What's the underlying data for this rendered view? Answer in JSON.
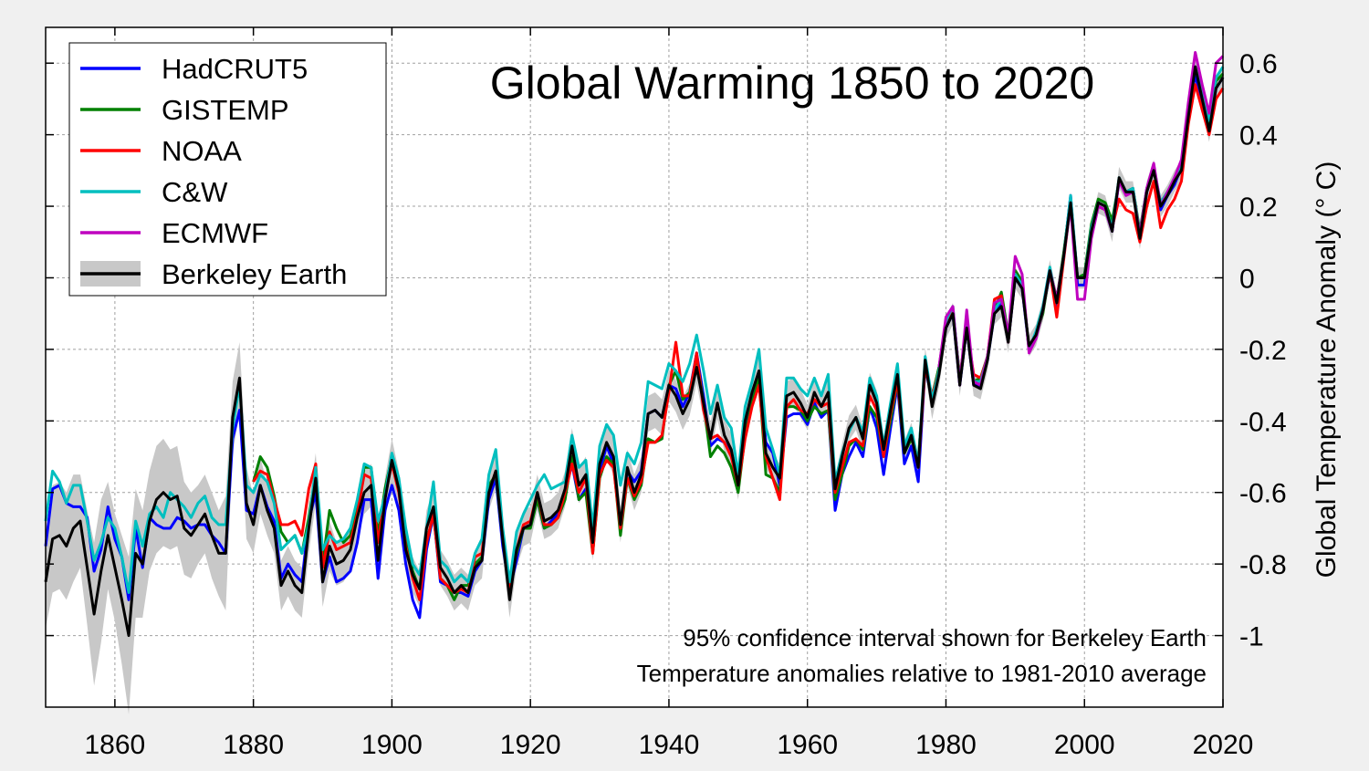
{
  "chart_data": {
    "type": "line",
    "title": "Global Warming 1850 to 2020",
    "xlabel": "",
    "ylabel": "Global Temperature Anomaly (° C)",
    "xlim": [
      1850,
      2020
    ],
    "ylim": [
      -1.2,
      0.7
    ],
    "x_ticks": [
      1860,
      1880,
      1900,
      1920,
      1940,
      1960,
      1980,
      2000,
      2020
    ],
    "y_ticks": [
      -1,
      -0.8,
      -0.6,
      -0.4,
      -0.2,
      0,
      0.2,
      0.4,
      0.6
    ],
    "y_tick_labels": [
      "-1",
      "-0.8",
      "-0.6",
      "-0.4",
      "-0.2",
      "0",
      "0.2",
      "0.4",
      "0.6"
    ],
    "y_axis_side": "right",
    "grid": true,
    "legend_position": "top-left",
    "annotations": [
      "95% confidence interval shown for Berkeley Earth",
      "Temperature anomalies relative to 1981-2010 average"
    ],
    "series": [
      {
        "name": "HadCRUT5",
        "color": "#0000ff",
        "start": 1850,
        "values": [
          -0.75,
          -0.59,
          -0.58,
          -0.63,
          -0.64,
          -0.64,
          -0.67,
          -0.82,
          -0.76,
          -0.64,
          -0.73,
          -0.78,
          -0.9,
          -0.7,
          -0.81,
          -0.67,
          -0.69,
          -0.7,
          -0.7,
          -0.67,
          -0.68,
          -0.7,
          -0.69,
          -0.69,
          -0.72,
          -0.74,
          -0.77,
          -0.45,
          -0.37,
          -0.65,
          -0.66,
          -0.58,
          -0.64,
          -0.68,
          -0.84,
          -0.8,
          -0.83,
          -0.85,
          -0.68,
          -0.6,
          -0.85,
          -0.78,
          -0.85,
          -0.84,
          -0.82,
          -0.74,
          -0.62,
          -0.62,
          -0.84,
          -0.65,
          -0.58,
          -0.65,
          -0.8,
          -0.9,
          -0.95,
          -0.76,
          -0.66,
          -0.85,
          -0.86,
          -0.88,
          -0.88,
          -0.89,
          -0.82,
          -0.79,
          -0.62,
          -0.56,
          -0.75,
          -0.87,
          -0.79,
          -0.7,
          -0.69,
          -0.62,
          -0.7,
          -0.68,
          -0.66,
          -0.6,
          -0.52,
          -0.62,
          -0.59,
          -0.76,
          -0.54,
          -0.47,
          -0.52,
          -0.7,
          -0.54,
          -0.57,
          -0.54,
          -0.38,
          -0.37,
          -0.39,
          -0.3,
          -0.31,
          -0.36,
          -0.32,
          -0.21,
          -0.33,
          -0.47,
          -0.45,
          -0.46,
          -0.49,
          -0.59,
          -0.42,
          -0.33,
          -0.27,
          -0.46,
          -0.49,
          -0.58,
          -0.39,
          -0.38,
          -0.38,
          -0.41,
          -0.35,
          -0.39,
          -0.37,
          -0.65,
          -0.55,
          -0.5,
          -0.46,
          -0.5,
          -0.36,
          -0.42,
          -0.55,
          -0.42,
          -0.3,
          -0.52,
          -0.47,
          -0.57,
          -0.25,
          -0.34,
          -0.25,
          -0.14,
          -0.1,
          -0.3,
          -0.14,
          -0.3,
          -0.3,
          -0.23,
          -0.1,
          -0.07,
          -0.18,
          0.0,
          -0.03,
          -0.2,
          -0.16,
          -0.09,
          0.01,
          -0.08,
          0.06,
          0.23,
          -0.02,
          -0.02,
          0.13,
          0.2,
          0.19,
          0.13,
          0.27,
          0.24,
          0.25,
          0.12,
          0.24,
          0.31,
          0.19,
          0.23,
          0.26,
          0.31,
          0.45,
          0.57,
          0.47,
          0.41,
          0.53,
          0.56
        ]
      },
      {
        "name": "GISTEMP",
        "color": "#008000",
        "start": 1880,
        "values": [
          -0.57,
          -0.5,
          -0.53,
          -0.61,
          -0.71,
          -0.74,
          -0.72,
          -0.77,
          -0.67,
          -0.55,
          -0.8,
          -0.65,
          -0.7,
          -0.74,
          -0.72,
          -0.65,
          -0.53,
          -0.53,
          -0.72,
          -0.59,
          -0.5,
          -0.58,
          -0.72,
          -0.82,
          -0.87,
          -0.74,
          -0.66,
          -0.84,
          -0.86,
          -0.9,
          -0.86,
          -0.86,
          -0.8,
          -0.78,
          -0.58,
          -0.55,
          -0.73,
          -0.85,
          -0.77,
          -0.7,
          -0.7,
          -0.62,
          -0.7,
          -0.69,
          -0.67,
          -0.62,
          -0.5,
          -0.62,
          -0.6,
          -0.77,
          -0.56,
          -0.5,
          -0.52,
          -0.72,
          -0.56,
          -0.62,
          -0.58,
          -0.45,
          -0.46,
          -0.45,
          -0.3,
          -0.26,
          -0.34,
          -0.32,
          -0.22,
          -0.35,
          -0.5,
          -0.47,
          -0.49,
          -0.53,
          -0.6,
          -0.44,
          -0.35,
          -0.28,
          -0.55,
          -0.56,
          -0.6,
          -0.36,
          -0.36,
          -0.37,
          -0.4,
          -0.36,
          -0.38,
          -0.37,
          -0.62,
          -0.55,
          -0.47,
          -0.45,
          -0.48,
          -0.36,
          -0.39,
          -0.5,
          -0.4,
          -0.29,
          -0.49,
          -0.45,
          -0.51,
          -0.25,
          -0.33,
          -0.25,
          -0.12,
          -0.09,
          -0.28,
          -0.13,
          -0.29,
          -0.28,
          -0.22,
          -0.09,
          -0.04,
          -0.16,
          0.02,
          -0.01,
          -0.2,
          -0.16,
          -0.1,
          0.02,
          -0.06,
          0.07,
          0.22,
          0.0,
          0.01,
          0.15,
          0.22,
          0.21,
          0.16,
          0.27,
          0.24,
          0.25,
          0.13,
          0.25,
          0.3,
          0.21,
          0.24,
          0.27,
          0.31,
          0.46,
          0.59,
          0.51,
          0.43,
          0.55,
          0.57
        ]
      },
      {
        "name": "NOAA",
        "color": "#ff0000",
        "start": 1880,
        "values": [
          -0.57,
          -0.54,
          -0.55,
          -0.62,
          -0.69,
          -0.69,
          -0.68,
          -0.72,
          -0.59,
          -0.52,
          -0.81,
          -0.71,
          -0.76,
          -0.75,
          -0.74,
          -0.66,
          -0.55,
          -0.56,
          -0.74,
          -0.61,
          -0.52,
          -0.6,
          -0.75,
          -0.84,
          -0.9,
          -0.74,
          -0.66,
          -0.84,
          -0.86,
          -0.88,
          -0.87,
          -0.88,
          -0.78,
          -0.77,
          -0.6,
          -0.54,
          -0.72,
          -0.87,
          -0.76,
          -0.69,
          -0.68,
          -0.6,
          -0.69,
          -0.69,
          -0.67,
          -0.6,
          -0.52,
          -0.6,
          -0.56,
          -0.77,
          -0.55,
          -0.51,
          -0.53,
          -0.7,
          -0.56,
          -0.61,
          -0.57,
          -0.46,
          -0.46,
          -0.44,
          -0.32,
          -0.18,
          -0.33,
          -0.33,
          -0.21,
          -0.37,
          -0.45,
          -0.44,
          -0.46,
          -0.5,
          -0.58,
          -0.45,
          -0.36,
          -0.3,
          -0.5,
          -0.56,
          -0.62,
          -0.36,
          -0.34,
          -0.37,
          -0.38,
          -0.34,
          -0.36,
          -0.35,
          -0.6,
          -0.53,
          -0.46,
          -0.45,
          -0.47,
          -0.33,
          -0.37,
          -0.5,
          -0.38,
          -0.29,
          -0.48,
          -0.44,
          -0.53,
          -0.25,
          -0.33,
          -0.26,
          -0.12,
          -0.09,
          -0.28,
          -0.14,
          -0.27,
          -0.28,
          -0.22,
          -0.06,
          -0.05,
          -0.18,
          0.01,
          -0.02,
          -0.2,
          -0.16,
          -0.09,
          0.02,
          -0.11,
          0.05,
          0.21,
          0.0,
          0.0,
          0.13,
          0.2,
          0.19,
          0.14,
          0.22,
          0.19,
          0.18,
          0.1,
          0.2,
          0.27,
          0.14,
          0.19,
          0.22,
          0.27,
          0.43,
          0.54,
          0.47,
          0.4,
          0.5,
          0.53
        ]
      },
      {
        "name": "C&W",
        "color": "#00bfbf",
        "start": 1850,
        "values": [
          -0.68,
          -0.54,
          -0.57,
          -0.63,
          -0.58,
          -0.58,
          -0.68,
          -0.79,
          -0.74,
          -0.67,
          -0.7,
          -0.78,
          -0.88,
          -0.68,
          -0.75,
          -0.66,
          -0.64,
          -0.67,
          -0.6,
          -0.62,
          -0.64,
          -0.67,
          -0.63,
          -0.61,
          -0.67,
          -0.69,
          -0.69,
          -0.42,
          -0.3,
          -0.58,
          -0.6,
          -0.55,
          -0.57,
          -0.63,
          -0.76,
          -0.74,
          -0.72,
          -0.77,
          -0.69,
          -0.53,
          -0.76,
          -0.72,
          -0.74,
          -0.73,
          -0.7,
          -0.62,
          -0.52,
          -0.53,
          -0.68,
          -0.61,
          -0.49,
          -0.56,
          -0.7,
          -0.8,
          -0.83,
          -0.7,
          -0.57,
          -0.79,
          -0.81,
          -0.85,
          -0.83,
          -0.85,
          -0.77,
          -0.73,
          -0.55,
          -0.48,
          -0.7,
          -0.85,
          -0.71,
          -0.66,
          -0.62,
          -0.58,
          -0.55,
          -0.59,
          -0.58,
          -0.57,
          -0.44,
          -0.53,
          -0.51,
          -0.7,
          -0.47,
          -0.41,
          -0.44,
          -0.58,
          -0.49,
          -0.52,
          -0.46,
          -0.29,
          -0.3,
          -0.31,
          -0.24,
          -0.26,
          -0.29,
          -0.24,
          -0.16,
          -0.26,
          -0.38,
          -0.3,
          -0.39,
          -0.42,
          -0.55,
          -0.36,
          -0.29,
          -0.2,
          -0.42,
          -0.48,
          -0.55,
          -0.28,
          -0.28,
          -0.31,
          -0.33,
          -0.28,
          -0.33,
          -0.27,
          -0.57,
          -0.49,
          -0.43,
          -0.39,
          -0.43,
          -0.28,
          -0.33,
          -0.47,
          -0.35,
          -0.24,
          -0.47,
          -0.42,
          -0.52,
          -0.22,
          -0.34,
          -0.26,
          -0.12,
          -0.08,
          -0.29,
          -0.13,
          -0.29,
          -0.29,
          -0.22,
          -0.09,
          -0.06,
          -0.17,
          0.01,
          -0.02,
          -0.2,
          -0.15,
          -0.08,
          0.03,
          -0.07,
          0.06,
          0.23,
          0.0,
          0.0,
          0.14,
          0.21,
          0.2,
          0.14,
          0.28,
          0.24,
          0.25,
          0.12,
          0.25,
          0.31,
          0.21,
          0.24,
          0.28,
          0.32,
          0.47,
          0.59,
          0.51,
          0.44,
          0.56,
          0.59
        ]
      },
      {
        "name": "ECMWF",
        "color": "#bf00bf",
        "start": 1979,
        "values": [
          -0.25,
          -0.11,
          -0.08,
          -0.3,
          -0.09,
          -0.29,
          -0.3,
          -0.22,
          -0.07,
          -0.06,
          -0.16,
          0.06,
          0.01,
          -0.21,
          -0.17,
          -0.09,
          0.02,
          -0.06,
          0.06,
          0.2,
          -0.06,
          -0.06,
          0.11,
          0.2,
          0.19,
          0.13,
          0.27,
          0.23,
          0.24,
          0.12,
          0.25,
          0.32,
          0.2,
          0.24,
          0.28,
          0.33,
          0.49,
          0.63,
          0.54,
          0.46,
          0.6,
          0.62
        ]
      },
      {
        "name": "Berkeley Earth",
        "color": "#000000",
        "band_color": "#c8c8c8",
        "start": 1850,
        "values": [
          -0.85,
          -0.73,
          -0.72,
          -0.75,
          -0.7,
          -0.68,
          -0.81,
          -0.94,
          -0.82,
          -0.72,
          -0.81,
          -0.9,
          -1.0,
          -0.77,
          -0.8,
          -0.68,
          -0.62,
          -0.6,
          -0.62,
          -0.61,
          -0.7,
          -0.72,
          -0.69,
          -0.66,
          -0.72,
          -0.77,
          -0.77,
          -0.39,
          -0.28,
          -0.63,
          -0.69,
          -0.58,
          -0.65,
          -0.7,
          -0.86,
          -0.82,
          -0.86,
          -0.88,
          -0.7,
          -0.56,
          -0.85,
          -0.75,
          -0.8,
          -0.79,
          -0.76,
          -0.67,
          -0.6,
          -0.58,
          -0.79,
          -0.62,
          -0.51,
          -0.59,
          -0.76,
          -0.83,
          -0.87,
          -0.7,
          -0.64,
          -0.81,
          -0.84,
          -0.88,
          -0.86,
          -0.88,
          -0.81,
          -0.79,
          -0.6,
          -0.54,
          -0.73,
          -0.9,
          -0.76,
          -0.7,
          -0.69,
          -0.6,
          -0.68,
          -0.67,
          -0.65,
          -0.59,
          -0.47,
          -0.58,
          -0.55,
          -0.74,
          -0.52,
          -0.46,
          -0.5,
          -0.69,
          -0.53,
          -0.6,
          -0.55,
          -0.38,
          -0.37,
          -0.39,
          -0.3,
          -0.33,
          -0.38,
          -0.34,
          -0.25,
          -0.35,
          -0.45,
          -0.35,
          -0.44,
          -0.48,
          -0.58,
          -0.4,
          -0.32,
          -0.26,
          -0.49,
          -0.53,
          -0.56,
          -0.33,
          -0.32,
          -0.35,
          -0.39,
          -0.32,
          -0.36,
          -0.32,
          -0.59,
          -0.5,
          -0.42,
          -0.39,
          -0.45,
          -0.3,
          -0.35,
          -0.48,
          -0.37,
          -0.27,
          -0.49,
          -0.44,
          -0.53,
          -0.23,
          -0.36,
          -0.27,
          -0.14,
          -0.1,
          -0.3,
          -0.14,
          -0.3,
          -0.31,
          -0.23,
          -0.1,
          -0.08,
          -0.18,
          0.0,
          -0.03,
          -0.19,
          -0.16,
          -0.09,
          0.02,
          -0.07,
          0.06,
          0.21,
          0.0,
          0.0,
          0.13,
          0.21,
          0.2,
          0.13,
          0.28,
          0.24,
          0.24,
          0.11,
          0.24,
          0.3,
          0.2,
          0.23,
          0.27,
          0.3,
          0.45,
          0.59,
          0.5,
          0.41,
          0.53,
          0.56
        ],
        "ci95_halfwidth": [
          0.13,
          0.15,
          0.15,
          0.15,
          0.15,
          0.13,
          0.16,
          0.2,
          0.2,
          0.15,
          0.15,
          0.18,
          0.22,
          0.18,
          0.15,
          0.14,
          0.15,
          0.15,
          0.14,
          0.14,
          0.13,
          0.12,
          0.11,
          0.11,
          0.12,
          0.12,
          0.16,
          0.1,
          0.1,
          0.1,
          0.08,
          0.08,
          0.07,
          0.07,
          0.07,
          0.07,
          0.07,
          0.07,
          0.07,
          0.07,
          0.07,
          0.07,
          0.06,
          0.06,
          0.06,
          0.06,
          0.06,
          0.06,
          0.06,
          0.06,
          0.06,
          0.05,
          0.05,
          0.05,
          0.05,
          0.05,
          0.05,
          0.05,
          0.05,
          0.05,
          0.05,
          0.05,
          0.05,
          0.05,
          0.05,
          0.05,
          0.05,
          0.05,
          0.05,
          0.05,
          0.05,
          0.05,
          0.05,
          0.05,
          0.05,
          0.05,
          0.05,
          0.05,
          0.05,
          0.05,
          0.05,
          0.05,
          0.05,
          0.05,
          0.05,
          0.05,
          0.05,
          0.05,
          0.05,
          0.05,
          0.045,
          0.045,
          0.045,
          0.045,
          0.045,
          0.045,
          0.045,
          0.045,
          0.045,
          0.045,
          0.04,
          0.04,
          0.04,
          0.04,
          0.04,
          0.04,
          0.04,
          0.04,
          0.04,
          0.04,
          0.035,
          0.035,
          0.035,
          0.035,
          0.035,
          0.035,
          0.035,
          0.035,
          0.035,
          0.035,
          0.035,
          0.035,
          0.035,
          0.035,
          0.035,
          0.035,
          0.035,
          0.035,
          0.035,
          0.035,
          0.03,
          0.03,
          0.03,
          0.03,
          0.03,
          0.03,
          0.03,
          0.03,
          0.03,
          0.03,
          0.03,
          0.03,
          0.03,
          0.03,
          0.03,
          0.03,
          0.03,
          0.03,
          0.03,
          0.03,
          0.03,
          0.03,
          0.03,
          0.03,
          0.03,
          0.03,
          0.03,
          0.03,
          0.03,
          0.03,
          0.03,
          0.03,
          0.03,
          0.03,
          0.03,
          0.03,
          0.03,
          0.03,
          0.03,
          0.03,
          0.03
        ]
      }
    ]
  }
}
